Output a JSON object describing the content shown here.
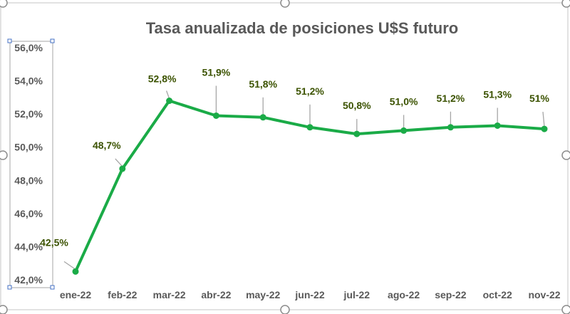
{
  "chart_data": {
    "type": "line",
    "title": "Tasa anualizada de posiciones U$S futuro",
    "categories": [
      "ene-22",
      "feb-22",
      "mar-22",
      "abr-22",
      "may-22",
      "jun-22",
      "jul-22",
      "ago-22",
      "sep-22",
      "oct-22",
      "nov-22"
    ],
    "series": [
      {
        "name": "Tasa anualizada",
        "values": [
          42.5,
          48.7,
          52.8,
          51.9,
          51.8,
          51.2,
          50.8,
          51.0,
          51.2,
          51.3,
          51.1
        ],
        "labels": [
          "42,5%",
          "48,7%",
          "52,8%",
          "51,9%",
          "51,8%",
          "51,2%",
          "50,8%",
          "51,0%",
          "51,2%",
          "51,3%",
          "51%"
        ]
      }
    ],
    "ylim": [
      42,
      56
    ],
    "yticks": [
      {
        "value": 56,
        "label": "56,0%"
      },
      {
        "value": 54,
        "label": "54,0%"
      },
      {
        "value": 52,
        "label": "52,0%"
      },
      {
        "value": 50,
        "label": "50,0%"
      },
      {
        "value": 48,
        "label": "48,0%"
      },
      {
        "value": 46,
        "label": "46,0%"
      },
      {
        "value": 44,
        "label": "44,0%"
      },
      {
        "value": 42,
        "label": "42,0%"
      }
    ],
    "xlabel": "",
    "ylabel": "",
    "grid": false,
    "legend": "none"
  },
  "colors": {
    "series": "#1aab47",
    "label_text": "#3b5200",
    "leader_line": "#a6a6a6",
    "axis_text": "#595959",
    "frame": "#d9d9d9",
    "selection": "#4472c4"
  }
}
